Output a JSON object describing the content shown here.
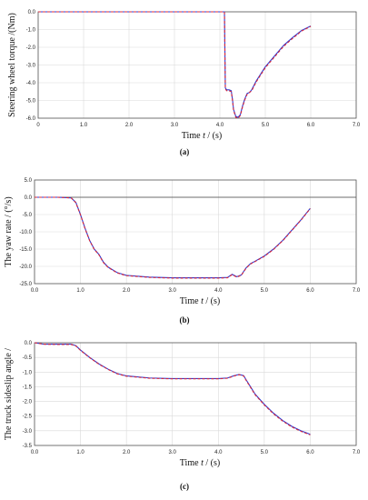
{
  "chart_data": [
    {
      "type": "line",
      "caption": "(a)",
      "xlabel_prefix": "Time ",
      "xlabel_var": "t",
      "xlabel_suffix": " / (s)",
      "ylabel": "Steering wheel torque /(Nm)",
      "xlim": [
        0,
        7
      ],
      "ylim": [
        -6,
        0
      ],
      "x_ticks": [
        0,
        1,
        2,
        3,
        4,
        5,
        6,
        7
      ],
      "x_tick_labels": [
        "0",
        "1.0",
        "2.0",
        "3.0",
        "4.0",
        "5.0",
        "6.0",
        "7.0"
      ],
      "y_ticks": [
        0,
        -1,
        -2,
        -3,
        -4,
        -5,
        -6
      ],
      "y_tick_labels": [
        "0.0",
        "-1.0",
        "-2.0",
        "-3.0",
        "-4.0",
        "-5.0",
        "-6.0"
      ],
      "grid": true,
      "series": [
        {
          "color": "#2b3bd6",
          "dash": "none",
          "x": [
            0,
            4.1,
            4.12,
            4.15,
            4.2,
            4.25,
            4.28,
            4.3,
            4.35,
            4.4,
            4.45,
            4.5,
            4.55,
            4.6,
            4.65,
            4.7,
            4.8,
            5.0,
            5.2,
            5.4,
            5.6,
            5.8,
            6.0
          ],
          "y": [
            0,
            0,
            -4.3,
            -4.4,
            -4.4,
            -4.45,
            -5.0,
            -5.5,
            -5.9,
            -5.95,
            -5.8,
            -5.3,
            -4.9,
            -4.6,
            -4.55,
            -4.4,
            -3.9,
            -3.1,
            -2.5,
            -1.9,
            -1.45,
            -1.05,
            -0.8
          ]
        },
        {
          "color": "#d6283b",
          "dash": "3,2",
          "x": [
            0,
            4.1,
            4.12,
            4.15,
            4.2,
            4.25,
            4.28,
            4.3,
            4.35,
            4.4,
            4.45,
            4.5,
            4.55,
            4.6,
            4.65,
            4.7,
            4.8,
            5.0,
            5.2,
            5.4,
            5.6,
            5.8,
            6.0
          ],
          "y": [
            0,
            0,
            -4.35,
            -4.45,
            -4.45,
            -4.5,
            -5.05,
            -5.55,
            -5.95,
            -6.0,
            -5.85,
            -5.35,
            -4.95,
            -4.65,
            -4.55,
            -4.45,
            -3.95,
            -3.15,
            -2.55,
            -1.95,
            -1.5,
            -1.08,
            -0.82
          ]
        }
      ]
    },
    {
      "type": "line",
      "caption": "(b)",
      "xlabel_prefix": "Time ",
      "xlabel_var": "t",
      "xlabel_suffix": " / (s)",
      "ylabel": "The yaw rate / (°/s)",
      "xlim": [
        0,
        7
      ],
      "ylim": [
        -25,
        5
      ],
      "x_ticks": [
        0,
        1,
        2,
        3,
        4,
        5,
        6,
        7
      ],
      "x_tick_labels": [
        "0.0",
        "1.0",
        "2.0",
        "3.0",
        "4.0",
        "5.0",
        "6.0",
        "7.0"
      ],
      "y_ticks": [
        5,
        0,
        -5,
        -10,
        -15,
        -20,
        -25
      ],
      "y_tick_labels": [
        "5.0",
        "0.0",
        "-5.0",
        "-10.0",
        "-15.0",
        "-20.0",
        "-25.0"
      ],
      "grid": true,
      "series": [
        {
          "color": "#2b3bd6",
          "dash": "none",
          "x": [
            0,
            0.5,
            0.8,
            0.9,
            1.0,
            1.1,
            1.2,
            1.3,
            1.4,
            1.5,
            1.6,
            1.8,
            2.0,
            2.5,
            3.0,
            3.5,
            4.0,
            4.2,
            4.3,
            4.4,
            4.5,
            4.6,
            4.7,
            4.8,
            5.0,
            5.2,
            5.4,
            5.6,
            5.8,
            6.0
          ],
          "y": [
            0,
            0,
            -0.2,
            -1.5,
            -5.0,
            -9.0,
            -12.5,
            -15.0,
            -16.5,
            -18.8,
            -20.2,
            -21.8,
            -22.6,
            -23.1,
            -23.3,
            -23.3,
            -23.3,
            -23.2,
            -22.3,
            -23.0,
            -22.5,
            -20.5,
            -19.2,
            -18.5,
            -17.0,
            -15.0,
            -12.5,
            -9.5,
            -6.5,
            -3.2
          ]
        },
        {
          "color": "#d6283b",
          "dash": "3,2",
          "x": [
            0,
            0.5,
            0.8,
            0.9,
            1.0,
            1.1,
            1.2,
            1.3,
            1.4,
            1.5,
            1.6,
            1.8,
            2.0,
            2.5,
            3.0,
            3.5,
            4.0,
            4.2,
            4.3,
            4.4,
            4.5,
            4.6,
            4.7,
            4.8,
            5.0,
            5.2,
            5.4,
            5.6,
            5.8,
            6.0
          ],
          "y": [
            0,
            0,
            -0.2,
            -1.6,
            -5.1,
            -9.1,
            -12.6,
            -15.1,
            -16.6,
            -18.9,
            -20.3,
            -21.9,
            -22.7,
            -23.2,
            -23.4,
            -23.4,
            -23.4,
            -23.3,
            -22.4,
            -23.1,
            -22.6,
            -20.6,
            -19.3,
            -18.6,
            -17.1,
            -15.1,
            -12.6,
            -9.6,
            -6.6,
            -3.3
          ]
        }
      ]
    },
    {
      "type": "line",
      "caption": "(c)",
      "xlabel_prefix": "Time ",
      "xlabel_var": "t",
      "xlabel_suffix": " / (s)",
      "ylabel": "The truck sideslip angle /",
      "xlim": [
        0,
        7
      ],
      "ylim": [
        -3.5,
        0
      ],
      "x_ticks": [
        0,
        1,
        2,
        3,
        4,
        5,
        6,
        7
      ],
      "x_tick_labels": [
        "0.0",
        "1.0",
        "2.0",
        "3.0",
        "4.0",
        "5.0",
        "6.0",
        "7.0"
      ],
      "y_ticks": [
        0,
        -0.5,
        -1,
        -1.5,
        -2,
        -2.5,
        -3,
        -3.5
      ],
      "y_tick_labels": [
        "0.0",
        "-0.5",
        "-1.0",
        "-1.5",
        "-2.0",
        "-2.5",
        "-3.0",
        "-3.5"
      ],
      "grid": true,
      "series": [
        {
          "color": "#2b3bd6",
          "dash": "none",
          "x": [
            0,
            0.2,
            0.5,
            0.8,
            0.9,
            1.0,
            1.2,
            1.4,
            1.6,
            1.8,
            2.0,
            2.5,
            3.0,
            3.5,
            4.0,
            4.2,
            4.35,
            4.45,
            4.55,
            4.6,
            4.7,
            4.8,
            5.0,
            5.2,
            5.4,
            5.6,
            5.8,
            6.0
          ],
          "y": [
            0,
            -0.05,
            -0.05,
            -0.05,
            -0.1,
            -0.25,
            -0.5,
            -0.72,
            -0.9,
            -1.05,
            -1.13,
            -1.2,
            -1.22,
            -1.22,
            -1.22,
            -1.2,
            -1.12,
            -1.08,
            -1.12,
            -1.25,
            -1.5,
            -1.75,
            -2.1,
            -2.4,
            -2.65,
            -2.85,
            -3.0,
            -3.12
          ]
        },
        {
          "color": "#d6283b",
          "dash": "3,2",
          "x": [
            0,
            0.2,
            0.5,
            0.8,
            0.9,
            1.0,
            1.2,
            1.4,
            1.6,
            1.8,
            2.0,
            2.5,
            3.0,
            3.5,
            4.0,
            4.2,
            4.35,
            4.45,
            4.55,
            4.6,
            4.7,
            4.8,
            5.0,
            5.2,
            5.4,
            5.6,
            5.8,
            6.0
          ],
          "y": [
            0,
            -0.05,
            -0.06,
            -0.06,
            -0.11,
            -0.26,
            -0.51,
            -0.73,
            -0.91,
            -1.06,
            -1.14,
            -1.21,
            -1.23,
            -1.23,
            -1.23,
            -1.21,
            -1.13,
            -1.09,
            -1.13,
            -1.27,
            -1.52,
            -1.77,
            -2.12,
            -2.42,
            -2.67,
            -2.87,
            -3.02,
            -3.14
          ]
        }
      ]
    }
  ]
}
